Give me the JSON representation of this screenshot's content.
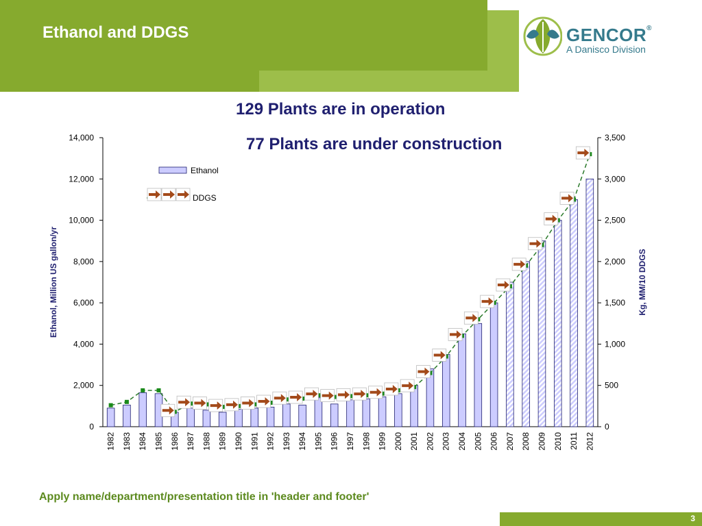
{
  "slide": {
    "title": "Ethanol and DDGS",
    "headline1": "129 Plants are in operation",
    "headline2": "77 Plants are under construction",
    "footer": "Apply name/department/presentation title in 'header and footer'",
    "page_number": "3"
  },
  "logo": {
    "name": "GENCOR",
    "registered": "®",
    "subtitle": "A Danisco Division",
    "icon": "leaf-globe-icon"
  },
  "colors": {
    "header_green": "#86aa2e",
    "header_light": "#9dbe4a",
    "headline_navy": "#1f1f6f",
    "bar_fill": "#ccccff",
    "bar_stroke": "#1f1f6f",
    "ddgs_line": "#2a7a2a",
    "ddgs_marker": "#1a8a1a",
    "arrow_fill": "#a34a1a"
  },
  "chart_data": {
    "type": "bar",
    "categories": [
      "1982",
      "1983",
      "1984",
      "1985",
      "1986",
      "1987",
      "1988",
      "1989",
      "1990",
      "1991",
      "1992",
      "1993",
      "1994",
      "1995",
      "1996",
      "1997",
      "1998",
      "1999",
      "2000",
      "2001",
      "2002",
      "2003",
      "2004",
      "2005",
      "2006",
      "2007",
      "2008",
      "2009",
      "2010",
      "2011",
      "2012"
    ],
    "series": [
      {
        "name": "Ethanol",
        "type": "bar",
        "axis": "left",
        "values": [
          900,
          1050,
          1650,
          1600,
          700,
          900,
          800,
          700,
          850,
          900,
          950,
          1100,
          1050,
          1400,
          1100,
          1300,
          1350,
          1450,
          1600,
          2000,
          2800,
          3500,
          4500,
          5000,
          6000,
          7000,
          8000,
          9000,
          10000,
          11000,
          12000
        ],
        "projected_from": "2007"
      },
      {
        "name": "DDGS",
        "type": "line",
        "axis": "right",
        "values": [
          260,
          300,
          440,
          440,
          180,
          280,
          270,
          240,
          250,
          270,
          290,
          330,
          340,
          380,
          360,
          370,
          380,
          400,
          440,
          480,
          650,
          850,
          1100,
          1300,
          1500,
          1700,
          1950,
          2200,
          2500,
          2750,
          3300
        ],
        "projected_from": "2001"
      }
    ],
    "left_axis": {
      "label": "Ethanol, Million US gallon/yr",
      "min": 0,
      "max": 14000,
      "ticks": [
        "0",
        "2,000",
        "4,000",
        "6,000",
        "8,000",
        "10,000",
        "12,000",
        "14,000"
      ]
    },
    "right_axis": {
      "label": "Kg, MM/10 DDGS",
      "min": 0,
      "max": 3500,
      "ticks": [
        "0",
        "500",
        "1,000",
        "1,500",
        "2,000",
        "2,500",
        "3,000",
        "3,500"
      ]
    },
    "legend": {
      "placement": "top-left",
      "entries": [
        "Ethanol",
        "DDGS"
      ]
    },
    "grid": false
  }
}
